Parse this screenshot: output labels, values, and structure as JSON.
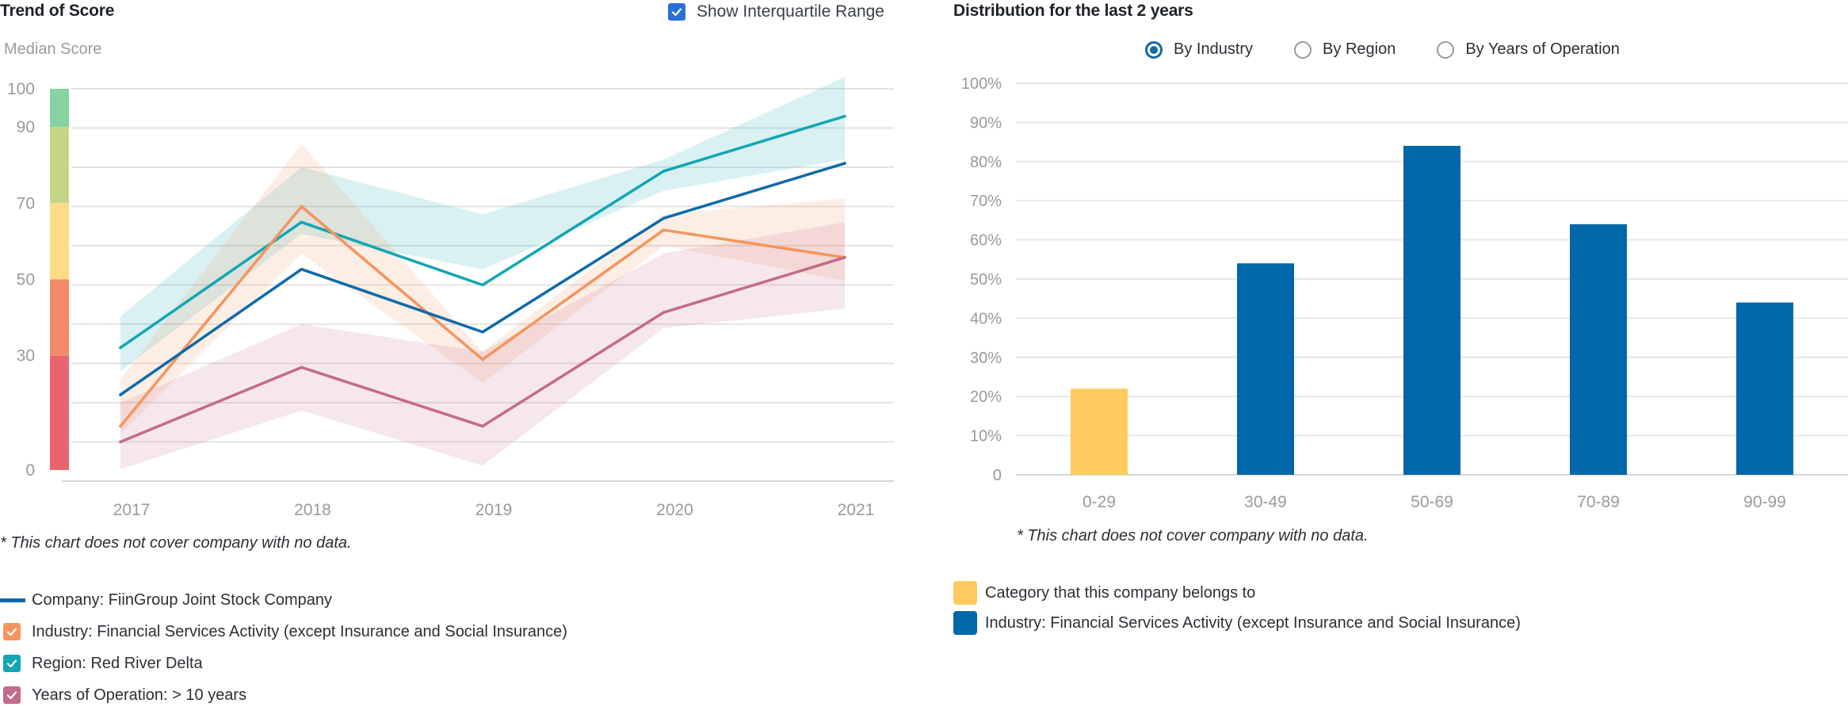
{
  "left_panel": {
    "title": "Trend of Score",
    "iqr_toggle": {
      "label": "Show Interquartile Range",
      "checked": true
    },
    "y_axis_title": "Median Score",
    "note": "* This chart does not cover company with no data.",
    "legend": [
      {
        "label": "Company: FiinGroup Joint Stock Company",
        "marker": "line",
        "color": "#0f6aa8"
      },
      {
        "label": "Industry: Financial Services Activity (except Insurance and Social Insurance)",
        "marker": "checkbox",
        "checked": true,
        "color": "#f4955e"
      },
      {
        "label": "Region: Red River Delta",
        "marker": "checkbox",
        "checked": true,
        "color": "#13a6b4"
      },
      {
        "label": "Years of Operation: > 10 years",
        "marker": "checkbox",
        "checked": true,
        "color": "#c46b86"
      }
    ],
    "score_bands": [
      {
        "from": 90,
        "to": 100,
        "color": "#86d3a3"
      },
      {
        "from": 70,
        "to": 90,
        "color": "#c4d686"
      },
      {
        "from": 50,
        "to": 70,
        "color": "#fedb86"
      },
      {
        "from": 30,
        "to": 50,
        "color": "#f28a6a"
      },
      {
        "from": 0,
        "to": 30,
        "color": "#ea6470"
      }
    ]
  },
  "right_panel": {
    "title": "Distribution for the last 2 years",
    "view_options": [
      {
        "label": "By Industry",
        "selected": true
      },
      {
        "label": "By Region",
        "selected": false
      },
      {
        "label": "By Years of Operation",
        "selected": false
      }
    ],
    "note": "* This chart does not cover company with no data.",
    "legend": [
      {
        "label": "Category that this company belongs to",
        "color": "#fdcb5f"
      },
      {
        "label": "Industry: Financial Services Activity (except Insurance and Social Insurance)",
        "color": "#0068a8"
      }
    ]
  },
  "chart_data": [
    {
      "type": "line",
      "title": "Trend of Score",
      "ylabel": "Median Score",
      "xlabel": "",
      "x": [
        "2017",
        "2018",
        "2019",
        "2020",
        "2021"
      ],
      "ylim": [
        0,
        100
      ],
      "y_tick_labels": [
        "100",
        "90",
        "70",
        "50",
        "30",
        "0"
      ],
      "y_tick_values": [
        100,
        90,
        70,
        50,
        30,
        0
      ],
      "gridlines_every": 10,
      "grid": true,
      "legend_position": "bottom",
      "series": [
        {
          "name": "Region: Red River Delta",
          "color": "#13a6b4",
          "values": [
            34,
            66,
            50,
            79,
            93
          ],
          "iqr_low": [
            28,
            63,
            54,
            74,
            82
          ],
          "iqr_high": [
            42,
            80,
            68,
            82,
            103
          ]
        },
        {
          "name": "Industry: Financial Services Activity (except Insurance and Social Insurance)",
          "color": "#f4955e",
          "values": [
            14,
            70,
            31,
            64,
            57
          ],
          "iqr_low": [
            12,
            58,
            25,
            60,
            51
          ],
          "iqr_high": [
            26,
            86,
            33,
            68,
            72
          ]
        },
        {
          "name": "Years of Operation: > 10 years",
          "color": "#c46b86",
          "values": [
            10,
            29,
            14,
            43,
            57
          ],
          "iqr_low": [
            3,
            18,
            4,
            39,
            44
          ],
          "iqr_high": [
            20,
            40,
            33,
            58,
            66
          ]
        },
        {
          "name": "Company: FiinGroup Joint Stock Company",
          "color": "#0f6aa8",
          "values": [
            22,
            54,
            38,
            67,
            81
          ]
        }
      ]
    },
    {
      "type": "bar",
      "title": "Distribution for the last 2 years",
      "categories": [
        "0-29",
        "30-49",
        "50-69",
        "70-89",
        "90-99"
      ],
      "values": [
        22,
        54,
        84,
        64,
        44
      ],
      "value_unit": "%",
      "highlight_index": 0,
      "colors": [
        "#fdcb5f",
        "#0068a8",
        "#0068a8",
        "#0068a8",
        "#0068a8"
      ],
      "ylim": [
        0,
        100
      ],
      "y_tick_labels": [
        "100%",
        "90%",
        "80%",
        "70%",
        "60%",
        "50%",
        "40%",
        "30%",
        "20%",
        "10%",
        "0"
      ],
      "grid": true,
      "legend_position": "bottom"
    }
  ]
}
